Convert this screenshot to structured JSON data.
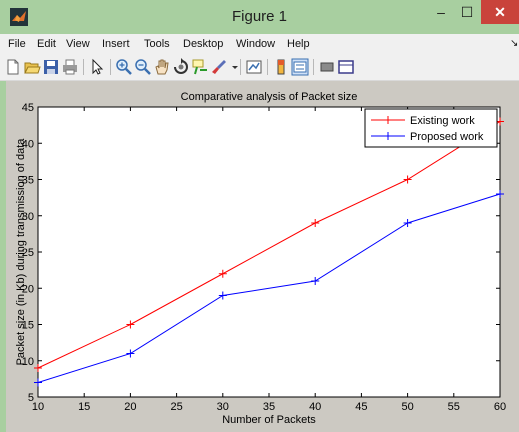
{
  "window": {
    "title": "Figure 1",
    "app_icon": "matlab-icon",
    "controls": {
      "minimize": "–",
      "maximize": "☐",
      "close": "✕"
    }
  },
  "menu": {
    "items": [
      "File",
      "Edit",
      "View",
      "Insert",
      "Tools",
      "Desktop",
      "Window",
      "Help"
    ],
    "overflow": "↘"
  },
  "toolbar": {
    "icons": [
      "new-figure-icon",
      "open-file-icon",
      "save-icon",
      "print-icon",
      "pointer-icon",
      "zoom-in-icon",
      "zoom-out-icon",
      "pan-icon",
      "rotate-icon",
      "data-cursor-icon",
      "brush-icon",
      "link-plot-icon",
      "colorbar-icon",
      "legend-icon",
      "hide-plot-tools-icon",
      "show-plot-tools-icon"
    ]
  },
  "chart_data": {
    "type": "line",
    "title": "Comparative analysis of Packet size",
    "xlabel": "Number of Packets",
    "ylabel": "Packet size (in Kb) during transmission of data",
    "xlim": [
      10,
      60
    ],
    "ylim": [
      5,
      45
    ],
    "xticks": [
      10,
      15,
      20,
      25,
      30,
      35,
      40,
      45,
      50,
      55,
      60
    ],
    "yticks": [
      5,
      10,
      15,
      20,
      25,
      30,
      35,
      40,
      45
    ],
    "x": [
      10,
      20,
      30,
      40,
      50,
      60
    ],
    "grid": false,
    "legend_position": "top-right",
    "series": [
      {
        "name": "Existing work",
        "values": [
          9,
          15,
          22,
          29,
          35,
          43
        ],
        "color": "#ff0000",
        "marker": "+"
      },
      {
        "name": "Proposed work",
        "values": [
          7,
          11,
          19,
          21,
          29,
          33
        ],
        "color": "#0000ff",
        "marker": "+"
      }
    ]
  }
}
